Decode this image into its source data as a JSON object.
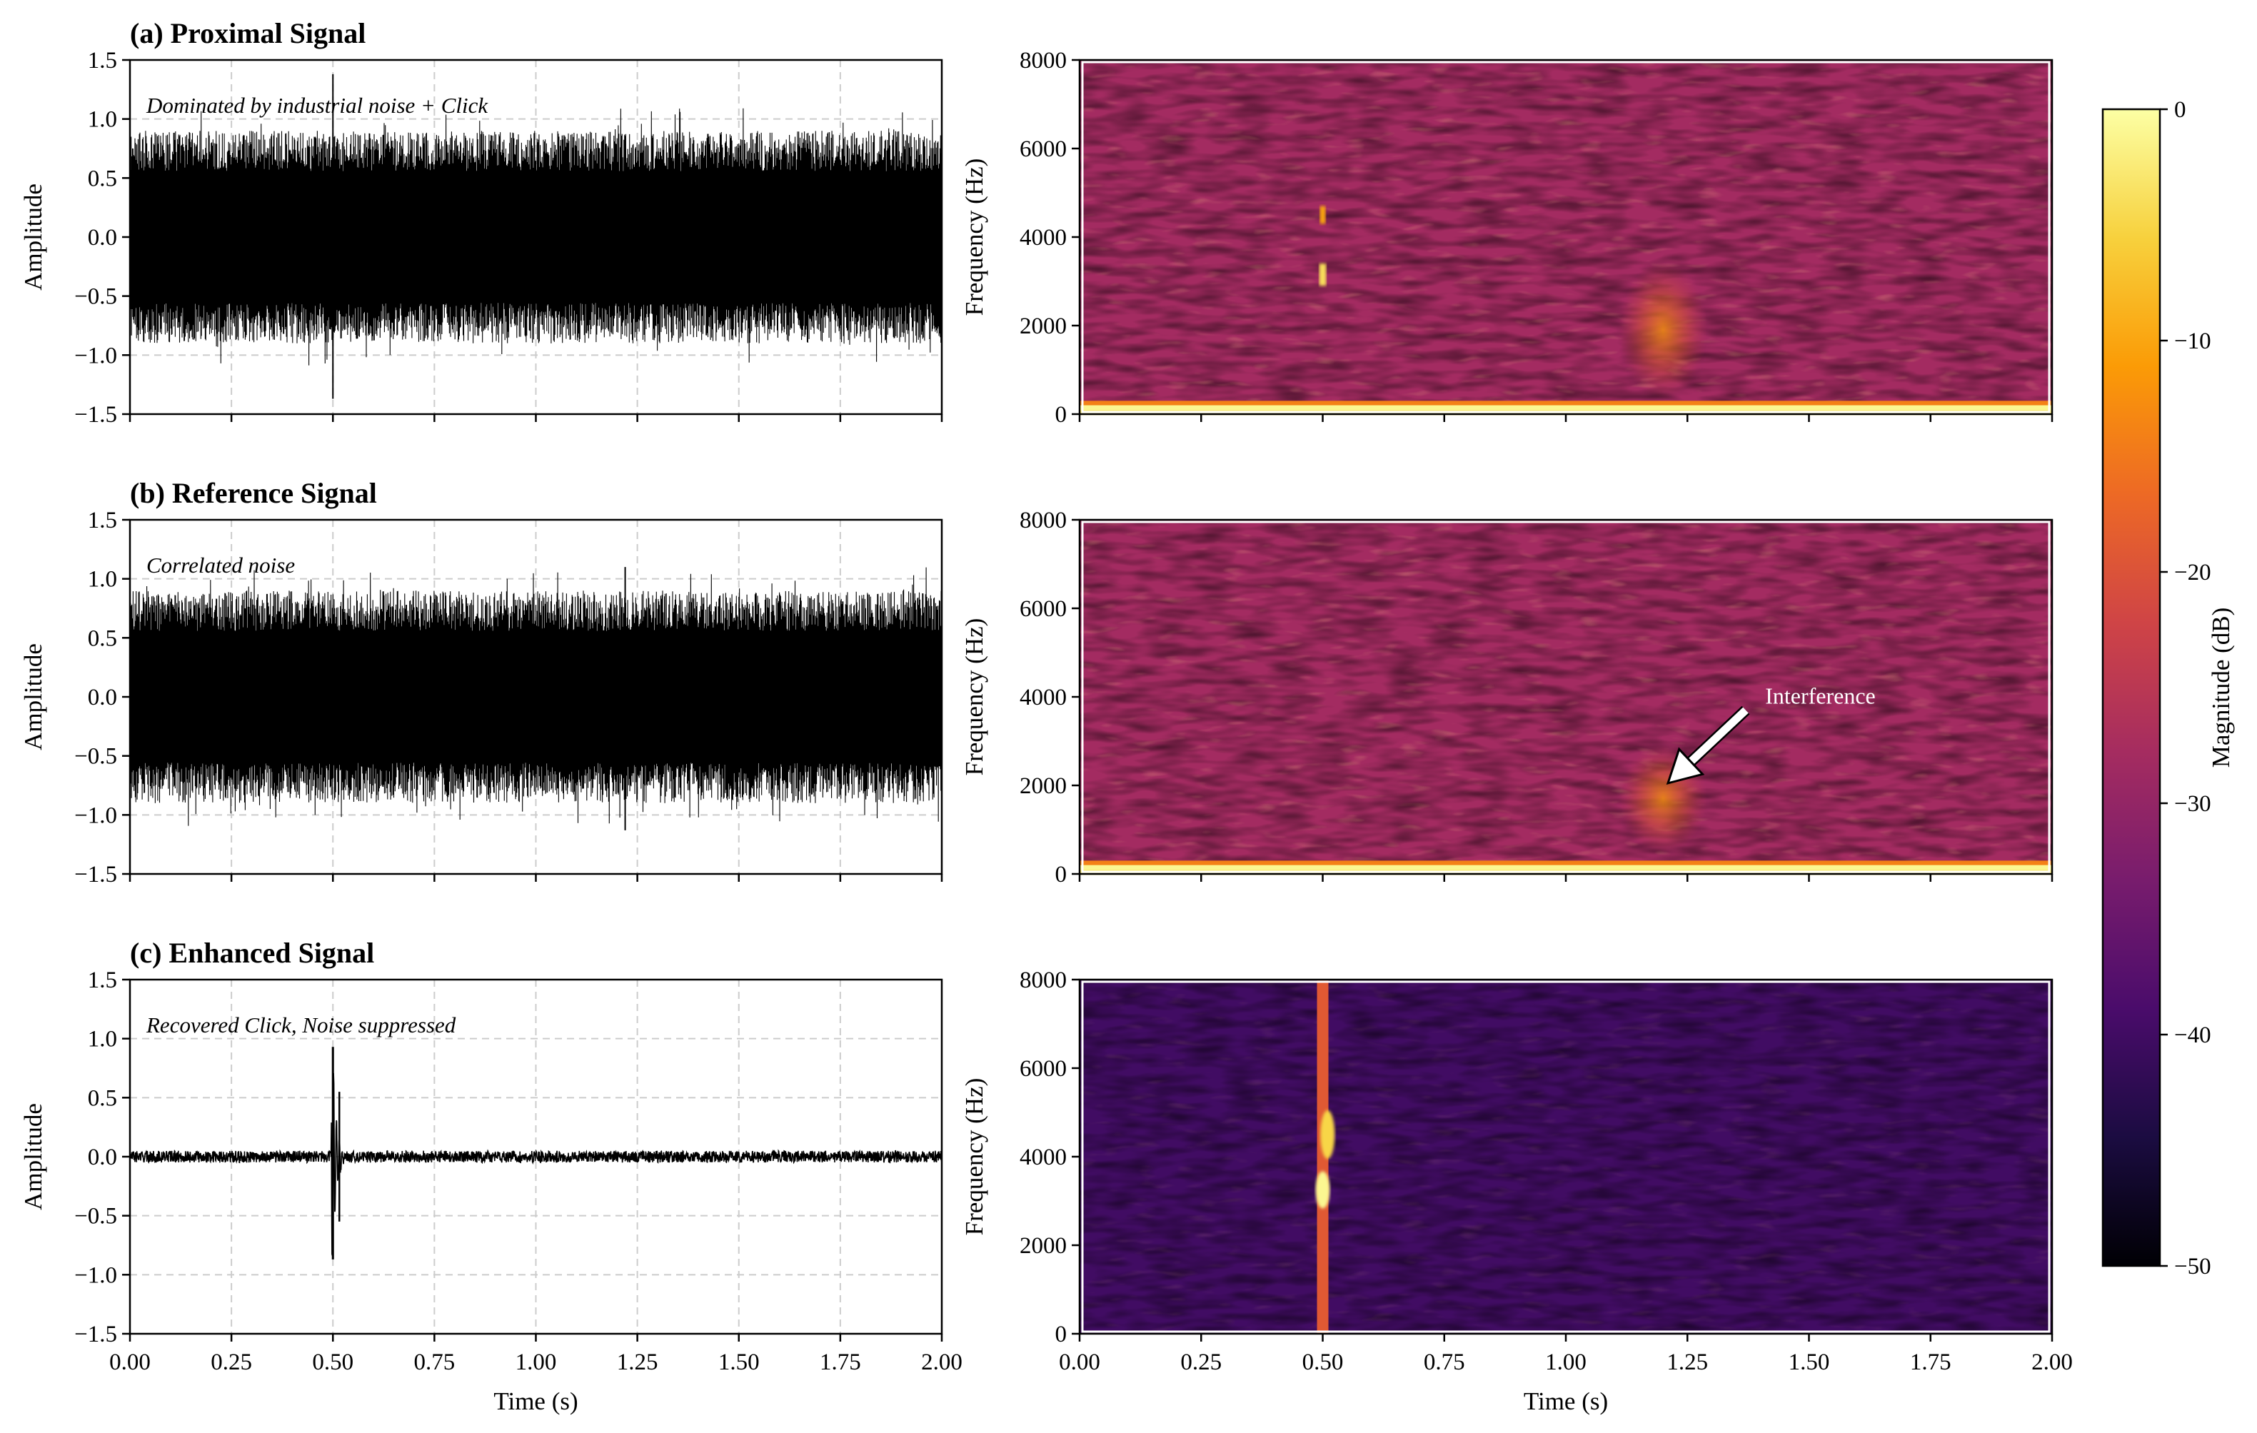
{
  "chart_data": [
    {
      "type": "line",
      "panel": "a",
      "title": "(a) Proximal Signal",
      "annotation": "Dominated by industrial noise + Click",
      "xlabel": "",
      "ylabel": "Amplitude",
      "xlim": [
        0,
        2
      ],
      "ylim": [
        -1.5,
        1.5
      ],
      "yticks": [
        "1.5",
        "1.0",
        "0.5",
        "0.0",
        "−0.5",
        "−1.0",
        "−1.5"
      ],
      "envelope": {
        "positive": 0.9,
        "negative": -0.9,
        "peaks": [
          1.38,
          -1.37
        ]
      },
      "click": {
        "time": 0.5
      },
      "grid": true
    },
    {
      "type": "line",
      "panel": "b",
      "title": "(b) Reference Signal",
      "annotation": "Correlated noise",
      "xlabel": "",
      "ylabel": "Amplitude",
      "xlim": [
        0,
        2
      ],
      "ylim": [
        -1.5,
        1.5
      ],
      "yticks": [
        "1.5",
        "1.0",
        "0.5",
        "0.0",
        "−0.5",
        "−1.0",
        "−1.5"
      ],
      "envelope": {
        "positive": 0.9,
        "negative": -0.9,
        "peaks": [
          1.1,
          -1.13
        ]
      },
      "grid": true
    },
    {
      "type": "line",
      "panel": "c",
      "title": "(c) Enhanced Signal",
      "annotation": "Recovered Click, Noise suppressed",
      "xlabel": "Time (s)",
      "ylabel": "Amplitude",
      "xlim": [
        0,
        2
      ],
      "ylim": [
        -1.5,
        1.5
      ],
      "xticks": [
        "0.00",
        "0.25",
        "0.50",
        "0.75",
        "1.00",
        "1.25",
        "1.50",
        "1.75",
        "2.00"
      ],
      "yticks": [
        "1.5",
        "1.0",
        "0.5",
        "0.0",
        "−0.5",
        "−1.0",
        "−1.5"
      ],
      "envelope": {
        "positive": 0.05,
        "negative": -0.05
      },
      "click": {
        "time": 0.5,
        "peak": 0.93,
        "trough": -0.87
      },
      "grid": true
    },
    {
      "type": "heatmap",
      "panel": "a-spectrogram",
      "xlabel": "",
      "ylabel": "Frequency (Hz)",
      "xlim": [
        0,
        2
      ],
      "ylim": [
        0,
        8000
      ],
      "yticks": [
        "8000",
        "6000",
        "4000",
        "2000",
        "0"
      ],
      "background_level_db": -28,
      "features": [
        "low-frequency tonal band below 300 Hz",
        "click at 0.5 s near 3200 and 4500 Hz",
        "interference blob at 1.2 s around 2000 Hz"
      ]
    },
    {
      "type": "heatmap",
      "panel": "b-spectrogram",
      "xlabel": "",
      "ylabel": "Frequency (Hz)",
      "xlim": [
        0,
        2
      ],
      "ylim": [
        0,
        8000
      ],
      "yticks": [
        "8000",
        "6000",
        "4000",
        "2000",
        "0"
      ],
      "background_level_db": -28,
      "annotation": "Interference",
      "arrow_target": {
        "time": 1.21,
        "frequency": 2050
      }
    },
    {
      "type": "heatmap",
      "panel": "c-spectrogram",
      "xlabel": "Time (s)",
      "ylabel": "Frequency (Hz)",
      "xlim": [
        0,
        2
      ],
      "ylim": [
        0,
        8000
      ],
      "xticks": [
        "0.00",
        "0.25",
        "0.50",
        "0.75",
        "1.00",
        "1.25",
        "1.50",
        "1.75",
        "2.00"
      ],
      "yticks": [
        "8000",
        "6000",
        "4000",
        "2000",
        "0"
      ],
      "background_level_db": -40,
      "features": [
        "click at 0.5 s spanning all frequencies, bright near 3200 and 4500 Hz"
      ]
    }
  ],
  "colorbar": {
    "label": "Magnitude (dB)",
    "range": [
      -50,
      0
    ],
    "ticks": [
      "0",
      "−10",
      "−20",
      "−30",
      "−40",
      "−50"
    ],
    "colormap": "inferno",
    "stops": [
      "#000004",
      "#1b0c41",
      "#4a0c6b",
      "#781c6d",
      "#a52c60",
      "#cf4446",
      "#ed6925",
      "#fb9b06",
      "#f7d13d",
      "#fcffa4"
    ]
  }
}
